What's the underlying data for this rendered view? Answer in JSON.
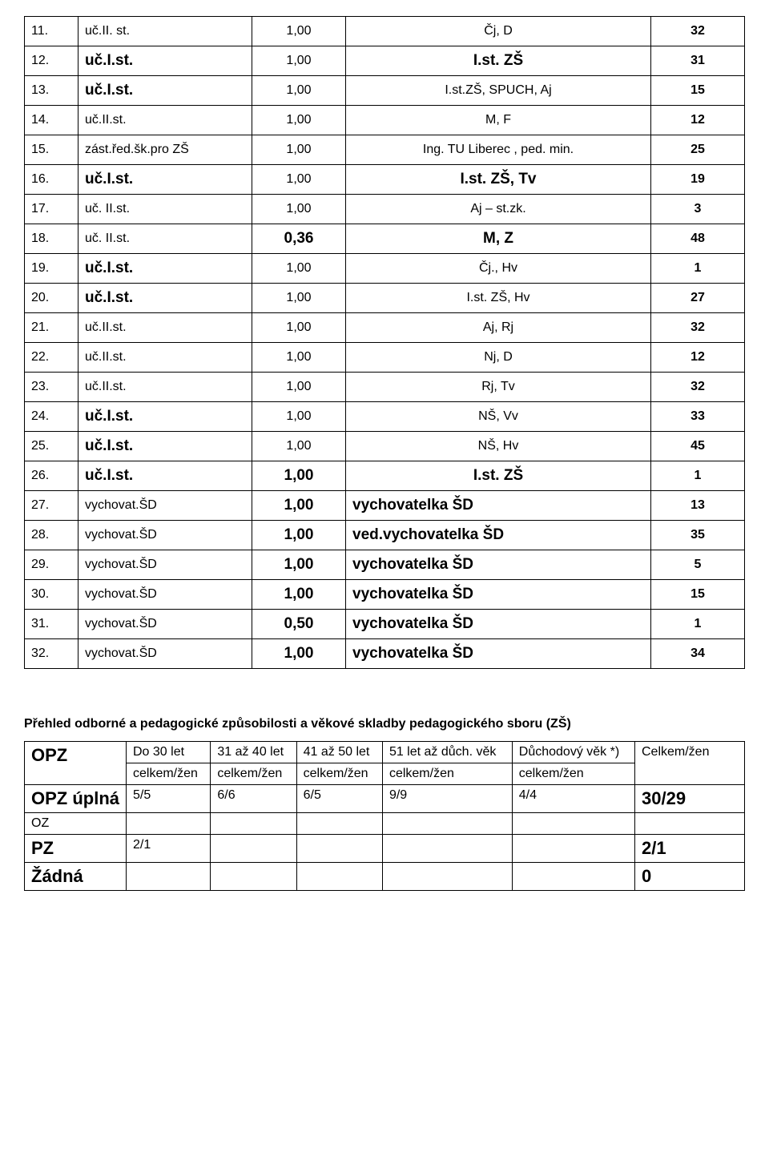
{
  "rows": [
    {
      "n": "11.",
      "role": "uč.II. st.",
      "role_bold": false,
      "val": "1,00",
      "val_bold": false,
      "subj": "Čj, D",
      "subj_bold": false,
      "yrs": "32"
    },
    {
      "n": "12.",
      "role": "uč.I.st.",
      "role_bold": true,
      "val": "1,00",
      "val_bold": false,
      "subj": "I.st. ZŠ",
      "subj_bold": true,
      "yrs": "31"
    },
    {
      "n": "13.",
      "role": "uč.I.st.",
      "role_bold": true,
      "val": "1,00",
      "val_bold": false,
      "subj": "I.st.ZŠ, SPUCH, Aj",
      "subj_bold": false,
      "yrs": "15"
    },
    {
      "n": "14.",
      "role": "uč.II.st.",
      "role_bold": false,
      "val": "1,00",
      "val_bold": false,
      "subj": "M, F",
      "subj_bold": false,
      "yrs": "12"
    },
    {
      "n": "15.",
      "role": "zást.řed.šk.pro ZŠ",
      "role_bold": false,
      "val": "1,00",
      "val_bold": false,
      "subj": "Ing. TU Liberec , ped. min.",
      "subj_bold": false,
      "yrs": "25"
    },
    {
      "n": "16.",
      "role": "uč.I.st.",
      "role_bold": true,
      "val": "1,00",
      "val_bold": false,
      "subj": "I.st. ZŠ, Tv",
      "subj_bold": true,
      "yrs": "19"
    },
    {
      "n": "17.",
      "role": "uč. II.st.",
      "role_bold": false,
      "val": "1,00",
      "val_bold": false,
      "subj": "Aj – st.zk.",
      "subj_bold": false,
      "yrs": "3"
    },
    {
      "n": "18.",
      "role": "uč. II.st.",
      "role_bold": false,
      "val": "0,36",
      "val_bold": true,
      "subj": "M, Z",
      "subj_bold": true,
      "yrs": "48"
    },
    {
      "n": "19.",
      "role": "uč.I.st.",
      "role_bold": true,
      "val": "1,00",
      "val_bold": false,
      "subj": "Čj., Hv",
      "subj_bold": false,
      "yrs": "1"
    },
    {
      "n": "20.",
      "role": "uč.I.st.",
      "role_bold": true,
      "val": "1,00",
      "val_bold": false,
      "subj": "I.st. ZŠ, Hv",
      "subj_bold": false,
      "yrs": "27"
    },
    {
      "n": "21.",
      "role": "uč.II.st.",
      "role_bold": false,
      "val": "1,00",
      "val_bold": false,
      "subj": "Aj, Rj",
      "subj_bold": false,
      "yrs": "32"
    },
    {
      "n": "22.",
      "role": "uč.II.st.",
      "role_bold": false,
      "val": "1,00",
      "val_bold": false,
      "subj": "Nj, D",
      "subj_bold": false,
      "yrs": "12"
    },
    {
      "n": "23.",
      "role": "uč.II.st.",
      "role_bold": false,
      "val": "1,00",
      "val_bold": false,
      "subj": "Rj, Tv",
      "subj_bold": false,
      "yrs": "32"
    },
    {
      "n": "24.",
      "role": "uč.I.st.",
      "role_bold": true,
      "val": "1,00",
      "val_bold": false,
      "subj": "NŠ, Vv",
      "subj_bold": false,
      "yrs": "33"
    },
    {
      "n": "25.",
      "role": "uč.I.st.",
      "role_bold": true,
      "val": "1,00",
      "val_bold": false,
      "subj": "NŠ, Hv",
      "subj_bold": false,
      "yrs": "45"
    },
    {
      "n": "26.",
      "role": "uč.I.st.",
      "role_bold": true,
      "val": "1,00",
      "val_bold": true,
      "subj": "I.st. ZŠ",
      "subj_bold": true,
      "yrs": "1"
    },
    {
      "n": "27.",
      "role": "vychovat.ŠD",
      "role_bold": false,
      "val": "1,00",
      "val_bold": true,
      "subj": "vychovatelka ŠD",
      "subj_bold": true,
      "subj_align": "left",
      "yrs": "13"
    },
    {
      "n": "28.",
      "role": "vychovat.ŠD",
      "role_bold": false,
      "val": "1,00",
      "val_bold": true,
      "subj": "ved.vychovatelka ŠD",
      "subj_bold": true,
      "subj_align": "left",
      "yrs": "35"
    },
    {
      "n": "29.",
      "role": "vychovat.ŠD",
      "role_bold": false,
      "val": "1,00",
      "val_bold": true,
      "subj": "vychovatelka ŠD",
      "subj_bold": true,
      "subj_align": "left",
      "yrs": "5"
    },
    {
      "n": "30.",
      "role": "vychovat.ŠD",
      "role_bold": false,
      "val": "1,00",
      "val_bold": true,
      "subj": "vychovatelka ŠD",
      "subj_bold": true,
      "subj_align": "left",
      "yrs": "15"
    },
    {
      "n": "31.",
      "role": "vychovat.ŠD",
      "role_bold": false,
      "val": "0,50",
      "val_bold": true,
      "subj": "vychovatelka ŠD",
      "subj_bold": true,
      "subj_align": "left",
      "yrs": "1"
    },
    {
      "n": "32.",
      "role": "vychovat.ŠD",
      "role_bold": false,
      "val": "1,00",
      "val_bold": true,
      "subj": "vychovatelka ŠD",
      "subj_bold": true,
      "subj_align": "left",
      "yrs": "34"
    }
  ],
  "summary_title": "Přehled odborné a pedagogické způsobilosti a věkové skladby pedagogického sboru (ZŠ)",
  "summary": {
    "hdr_opz": "OPZ",
    "col1_a": "Do 30 let",
    "col1_b": "celkem/žen",
    "col2_a": "31 až 40 let",
    "col2_b": "celkem/žen",
    "col3_a": "41 až 50 let",
    "col3_b": "celkem/žen",
    "col4_a": "51 let až důch. věk",
    "col4_b": "celkem/žen",
    "col5_a": "Důchodový věk *)",
    "col5_b": "celkem/žen",
    "col6": "Celkem/žen",
    "r1_label": "OPZ úplná",
    "r1": [
      "5/5",
      "6/6",
      "6/5",
      "9/9",
      "4/4",
      "30/29"
    ],
    "r_oz": "OZ",
    "r_pz": "PZ",
    "r_pz_v": "2/1",
    "r_pz_total": "2/1",
    "r_zadna": "Žádná",
    "r_zadna_total": "0"
  }
}
